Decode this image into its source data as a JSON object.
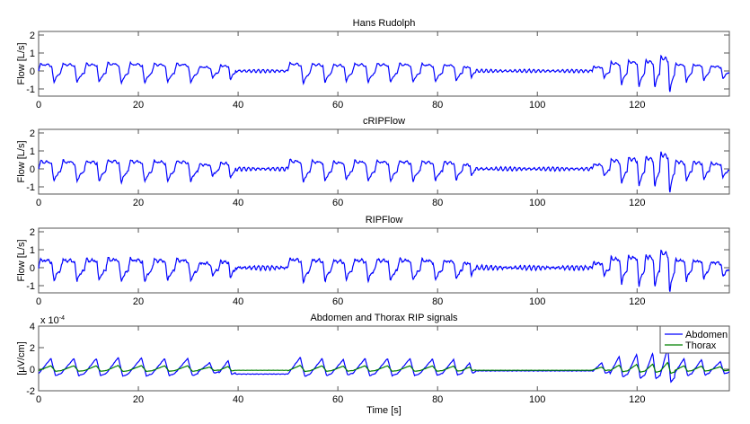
{
  "chart_data": {
    "type": "line",
    "xlabel": "Time [s]",
    "xlim": [
      0,
      138.5
    ],
    "xticks": [
      0,
      20,
      40,
      60,
      80,
      100,
      120
    ],
    "subplots": [
      {
        "title": "Hans Rudolph",
        "ylabel": "Flow [L/s]",
        "ylim": [
          -1.4,
          2.2
        ],
        "yticks": [
          -1,
          0,
          1,
          2
        ],
        "kind": "flow",
        "series": [
          {
            "name": "Hans Rudolph flow",
            "color": "#0000ff",
            "gain": 1.0,
            "noise": 0.04
          }
        ]
      },
      {
        "title": "cRIPFlow",
        "ylabel": "Flow [L/s]",
        "ylim": [
          -1.4,
          2.2
        ],
        "yticks": [
          -1,
          0,
          1,
          2
        ],
        "kind": "flow",
        "series": [
          {
            "name": "cRIPFlow",
            "color": "#0000ff",
            "gain": 1.1,
            "noise": 0.06
          }
        ]
      },
      {
        "title": "RIPFlow",
        "ylabel": "Flow [L/s]",
        "ylim": [
          -1.4,
          2.2
        ],
        "yticks": [
          -1,
          0,
          1,
          2
        ],
        "kind": "flow",
        "series": [
          {
            "name": "RIPFlow",
            "color": "#0000ff",
            "gain": 1.15,
            "noise": 0.09
          }
        ]
      },
      {
        "title": "Abdomen and Thorax RIP signals",
        "ylabel": "[µV/cm]",
        "ylim": [
          -2,
          4
        ],
        "yticks": [
          -2,
          0,
          2,
          4
        ],
        "exponent_label": "x 10",
        "exponent_power": "-4",
        "kind": "rip",
        "legend": {
          "position": "top-right",
          "entries": [
            "Abdomen",
            "Thorax"
          ]
        },
        "series": [
          {
            "name": "Abdomen",
            "color": "#0000ff",
            "gain": 1.0,
            "noise": 0.03
          },
          {
            "name": "Thorax",
            "color": "#008000",
            "gain": 0.32,
            "noise": 0.01
          }
        ]
      }
    ],
    "breaths_note_units": "start time [s], duration [s], relative amplitude",
    "breaths": [
      [
        0,
        4.5,
        1.0
      ],
      [
        4.5,
        4.7,
        1.0
      ],
      [
        9.2,
        4.3,
        1.0
      ],
      [
        13.5,
        4.5,
        1.1
      ],
      [
        18,
        4.8,
        1.05
      ],
      [
        22.8,
        4.5,
        1.0
      ],
      [
        27.3,
        4.7,
        1.0
      ],
      [
        32,
        4.2,
        0.6
      ],
      [
        36.2,
        3.3,
        0.8
      ],
      [
        50,
        4.5,
        1.1
      ],
      [
        54.5,
        4.3,
        1.0
      ],
      [
        58.8,
        4.2,
        0.9
      ],
      [
        63,
        4.5,
        1.0
      ],
      [
        67.5,
        4.5,
        1.0
      ],
      [
        72,
        4.5,
        1.0
      ],
      [
        76.5,
        4.5,
        0.95
      ],
      [
        81,
        4.0,
        0.9
      ],
      [
        85,
        2.6,
        0.6
      ],
      [
        111,
        3.5,
        0.6
      ],
      [
        114.5,
        3.5,
        1.2
      ],
      [
        118,
        3.5,
        1.4
      ],
      [
        121.5,
        3.0,
        1.5
      ],
      [
        124.5,
        3.0,
        2.0
      ],
      [
        127.5,
        3.5,
        1.0
      ],
      [
        131,
        3.5,
        0.9
      ],
      [
        134.5,
        4,
        0.7
      ]
    ],
    "quiet_segments": [
      [
        39.5,
        50
      ],
      [
        87.6,
        111
      ]
    ]
  }
}
